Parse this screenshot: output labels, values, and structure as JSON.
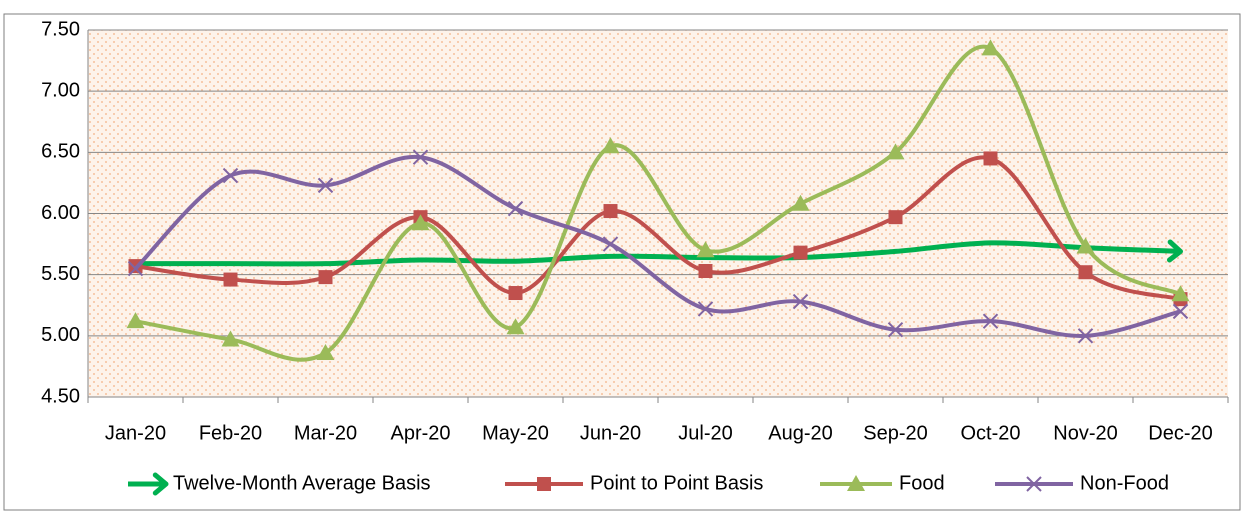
{
  "chart_data": {
    "type": "line",
    "categories": [
      "Jan-20",
      "Feb-20",
      "Mar-20",
      "Apr-20",
      "May-20",
      "Jun-20",
      "Jul-20",
      "Aug-20",
      "Sep-20",
      "Oct-20",
      "Nov-20",
      "Dec-20"
    ],
    "series": [
      {
        "name": "Twelve-Month Average Basis",
        "color": "#00b050",
        "values": [
          5.59,
          5.59,
          5.59,
          5.62,
          5.61,
          5.65,
          5.64,
          5.64,
          5.69,
          5.76,
          5.72,
          5.69
        ]
      },
      {
        "name": "Point to Point Basis",
        "color": "#c0504d",
        "values": [
          5.57,
          5.46,
          5.48,
          5.97,
          5.35,
          6.02,
          5.53,
          5.68,
          5.97,
          6.45,
          5.52,
          5.3
        ]
      },
      {
        "name": "Food",
        "color": "#9bbb59",
        "values": [
          5.12,
          4.97,
          4.86,
          5.92,
          5.07,
          6.55,
          5.7,
          6.08,
          6.5,
          7.35,
          5.73,
          5.34
        ]
      },
      {
        "name": "Non-Food",
        "color": "#8064a2",
        "values": [
          5.55,
          6.31,
          6.23,
          6.46,
          6.04,
          5.75,
          5.22,
          5.28,
          5.05,
          5.12,
          5.0,
          5.2
        ]
      }
    ],
    "ylim": [
      4.5,
      7.5
    ],
    "yticks": [
      {
        "value": 4.5,
        "label": "4.50"
      },
      {
        "value": 5.0,
        "label": "5.00"
      },
      {
        "value": 5.5,
        "label": "5.50"
      },
      {
        "value": 6.0,
        "label": "6.00"
      },
      {
        "value": 6.5,
        "label": "6.50"
      },
      {
        "value": 7.0,
        "label": "7.00"
      },
      {
        "value": 7.5,
        "label": "7.50"
      }
    ],
    "grid": true
  }
}
